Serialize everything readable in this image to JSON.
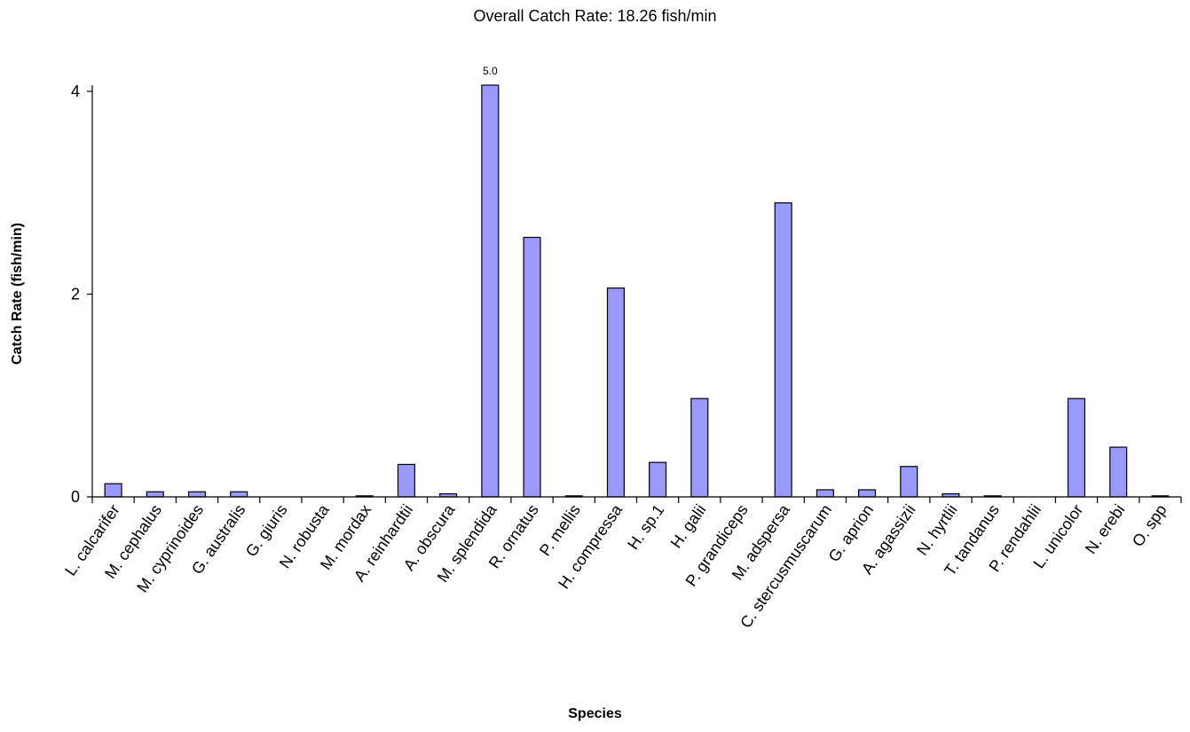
{
  "chart_data": {
    "type": "bar",
    "title": "Overall Catch Rate: 18.26 fish/min",
    "xlabel": "Species",
    "ylabel": "Catch Rate (fish/min)",
    "ylim": [
      0,
      4
    ],
    "yticks": [
      0,
      2,
      4
    ],
    "bar_color": "#9999ff",
    "grid": false,
    "categories": [
      "L. calcarifer",
      "M. cephalus",
      "M. cyprinoides",
      "G. australis",
      "G. giuris",
      "N. robusta",
      "M. mordax",
      "A. reinhardtii",
      "A. obscura",
      "M. splendida",
      "R. ornatus",
      "P. mellis",
      "H. compressa",
      "H. sp.1",
      "H. galii",
      "P. grandiceps",
      "M. adspersa",
      "C. stercusmuscarum",
      "G. aprion",
      "A. agassizii",
      "N. hyrtlii",
      "T. tandanus",
      "P. rendahlii",
      "L. unicolor",
      "N. erebi",
      "O. spp"
    ],
    "values": [
      0.13,
      0.05,
      0.05,
      0.05,
      0,
      0,
      0.01,
      0.32,
      0.03,
      5.0,
      2.56,
      0.01,
      2.06,
      0.34,
      0.97,
      0,
      2.9,
      0.07,
      0.07,
      0.3,
      0.03,
      0.01,
      0,
      0.97,
      0.49,
      0.01
    ],
    "overflow_label": "5.0"
  }
}
